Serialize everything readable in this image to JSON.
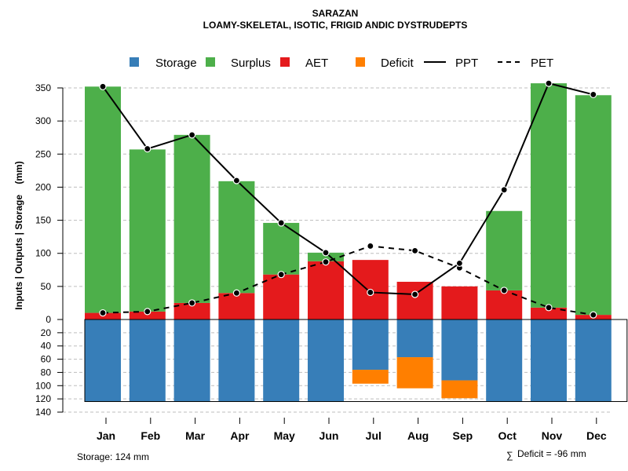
{
  "chart_data": {
    "type": "bar",
    "title": "SARAZAN",
    "subtitle": "LOAMY-SKELETAL, ISOTIC, FRIGID ANDIC DYSTRUDEPTS",
    "ylabel": "Inputs | Outputs | Storage    (mm)",
    "categories": [
      "Jan",
      "Feb",
      "Mar",
      "Apr",
      "May",
      "Jun",
      "Jul",
      "Aug",
      "Sep",
      "Oct",
      "Nov",
      "Dec"
    ],
    "ylim_top": [
      0,
      370
    ],
    "ylim_bottom": [
      0,
      140
    ],
    "yticks_top": [
      0,
      50,
      100,
      150,
      200,
      250,
      300,
      350
    ],
    "yticks_bottom": [
      20,
      40,
      60,
      80,
      100,
      120,
      140
    ],
    "storage_capacity": 124,
    "series": [
      {
        "name": "Storage",
        "color": "#377EB8",
        "values": [
          124,
          124,
          124,
          124,
          124,
          124,
          76,
          57,
          92,
          124,
          124,
          124
        ]
      },
      {
        "name": "Surplus",
        "color": "#4DAF4A",
        "values": [
          342,
          245,
          254,
          169,
          78,
          13,
          0,
          0,
          0,
          120,
          339,
          332
        ]
      },
      {
        "name": "AET",
        "color": "#E41A1C",
        "values": [
          10,
          12,
          25,
          40,
          68,
          88,
          90,
          57,
          50,
          44,
          18,
          7
        ]
      },
      {
        "name": "Deficit",
        "color": "#FF7F00",
        "values": [
          0,
          0,
          0,
          0,
          0,
          0,
          21,
          47,
          27,
          0,
          0,
          0
        ]
      },
      {
        "name": "PPT",
        "color": "#000000",
        "values": [
          352,
          258,
          279,
          210,
          146,
          101,
          41,
          38,
          85,
          196,
          357,
          340
        ]
      },
      {
        "name": "PET",
        "color": "#000000",
        "values": [
          10,
          12,
          25,
          40,
          68,
          87,
          111,
          104,
          78,
          44,
          18,
          7
        ]
      }
    ]
  },
  "legend": {
    "storage": "Storage",
    "surplus": "Surplus",
    "aet": "AET",
    "deficit": "Deficit",
    "ppt": "PPT",
    "pet": "PET"
  },
  "footer": {
    "storage_note": "Storage: 124 mm",
    "deficit_symbol": "∑",
    "deficit_note": "Deficit = -96 mm"
  }
}
